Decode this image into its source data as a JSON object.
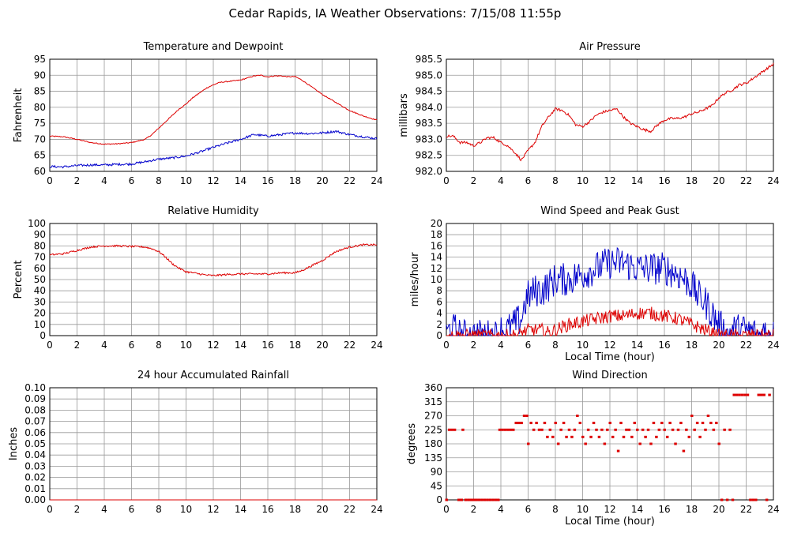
{
  "page_title": "Cedar Rapids, IA Weather Observations: 7/15/08 11:55p",
  "chart_data": [
    {
      "id": "temp",
      "type": "line",
      "title": "Temperature and Dewpoint",
      "xlabel": "",
      "ylabel": "Fahrenheit",
      "xlim": [
        0,
        24
      ],
      "ylim": [
        60,
        95
      ],
      "xticks": [
        "0",
        "2",
        "4",
        "6",
        "8",
        "10",
        "12",
        "14",
        "16",
        "18",
        "20",
        "22",
        "24"
      ],
      "yticks": [
        "60",
        "65",
        "70",
        "75",
        "80",
        "85",
        "90",
        "95"
      ],
      "grid": true,
      "series": [
        {
          "color": "#dd0000",
          "jitter": 0.15,
          "x": [
            0,
            1,
            2,
            3,
            4,
            5,
            6,
            7,
            7.5,
            8,
            8.5,
            9,
            9.5,
            10,
            10.5,
            11,
            11.5,
            12,
            12.5,
            13,
            14,
            15,
            15.5,
            16,
            16.5,
            17,
            17.5,
            18,
            18.5,
            19,
            20,
            21,
            22,
            23,
            24
          ],
          "y": [
            71,
            70.8,
            70,
            69,
            68.5,
            68.6,
            69,
            70,
            71.5,
            73.5,
            75.5,
            77.5,
            79.5,
            81,
            83,
            84.5,
            86,
            87,
            87.8,
            88,
            88.5,
            89.8,
            90,
            89.5,
            89.8,
            89.8,
            89.5,
            89.6,
            88.5,
            87,
            84,
            81.5,
            79,
            77.3,
            76
          ]
        },
        {
          "color": "#0000cc",
          "jitter": 0.35,
          "x": [
            0,
            1,
            2,
            3,
            4,
            5,
            6,
            7,
            8,
            9,
            10,
            11,
            12,
            13,
            14,
            15,
            16,
            17,
            18,
            19,
            20,
            21,
            22,
            23,
            24
          ],
          "y": [
            61.5,
            61.4,
            61.8,
            62,
            62,
            62.2,
            62.3,
            63,
            63.8,
            64.2,
            64.8,
            66,
            67.5,
            68.8,
            70,
            71.5,
            71,
            71.5,
            72,
            71.8,
            72,
            72.5,
            71.5,
            70.8,
            70.2
          ]
        }
      ]
    },
    {
      "id": "pressure",
      "type": "line",
      "title": "Air Pressure",
      "xlabel": "",
      "ylabel": "millibars",
      "xlim": [
        0,
        24
      ],
      "ylim": [
        982.0,
        985.5
      ],
      "xticks": [
        "0",
        "2",
        "4",
        "6",
        "8",
        "10",
        "12",
        "14",
        "16",
        "18",
        "20",
        "22",
        "24"
      ],
      "yticks": [
        "982.0",
        "982.5",
        "983.0",
        "983.5",
        "984.0",
        "984.5",
        "985.0",
        "985.5"
      ],
      "grid": true,
      "series": [
        {
          "color": "#dd0000",
          "jitter": 0.04,
          "x": [
            0,
            0.5,
            1,
            1.5,
            2,
            2.5,
            3,
            3.5,
            4,
            4.5,
            5,
            5.5,
            6,
            6.5,
            7,
            7.5,
            8,
            8.5,
            9,
            9.5,
            10,
            10.5,
            11,
            11.5,
            12,
            12.5,
            13,
            13.5,
            14,
            14.5,
            15,
            15.5,
            16,
            16.5,
            17,
            17.5,
            18,
            18.5,
            19,
            19.5,
            20,
            20.5,
            21,
            21.5,
            22,
            22.5,
            23,
            23.5,
            24
          ],
          "y": [
            983.1,
            983.1,
            982.9,
            982.9,
            982.8,
            982.9,
            983.05,
            983.05,
            982.9,
            982.8,
            982.6,
            982.35,
            982.65,
            982.9,
            983.4,
            983.7,
            983.95,
            983.9,
            983.75,
            983.45,
            983.4,
            983.55,
            983.75,
            983.85,
            983.9,
            983.95,
            983.7,
            983.5,
            983.4,
            983.3,
            983.25,
            983.45,
            983.6,
            983.65,
            983.65,
            983.7,
            983.8,
            983.85,
            983.95,
            984.05,
            984.3,
            984.45,
            984.55,
            984.7,
            984.75,
            984.9,
            985.05,
            985.2,
            985.35
          ]
        }
      ]
    },
    {
      "id": "humidity",
      "type": "line",
      "title": "Relative Humidity",
      "xlabel": "",
      "ylabel": "Percent",
      "xlim": [
        0,
        24
      ],
      "ylim": [
        0,
        100
      ],
      "xticks": [
        "0",
        "2",
        "4",
        "6",
        "8",
        "10",
        "12",
        "14",
        "16",
        "18",
        "20",
        "22",
        "24"
      ],
      "yticks": [
        "0",
        "10",
        "20",
        "30",
        "40",
        "50",
        "60",
        "70",
        "80",
        "90",
        "100"
      ],
      "grid": true,
      "series": [
        {
          "color": "#dd0000",
          "jitter": 0.8,
          "x": [
            0,
            1,
            2,
            3,
            4,
            5,
            6,
            7,
            7.5,
            8,
            8.5,
            9,
            9.5,
            10,
            10.5,
            11,
            11.5,
            12,
            12.5,
            13,
            14,
            15,
            16,
            17,
            18,
            18.5,
            19,
            19.5,
            20,
            20.5,
            21,
            22,
            23,
            24
          ],
          "y": [
            72,
            73,
            76,
            79,
            80,
            80,
            79.5,
            79,
            77.5,
            75,
            70,
            64,
            60,
            57,
            56,
            55,
            54,
            53.5,
            54,
            54.5,
            55,
            55,
            55,
            56,
            56,
            58,
            61,
            64,
            67,
            71,
            75,
            79,
            81,
            81
          ]
        }
      ]
    },
    {
      "id": "wind",
      "type": "line",
      "title": "Wind Speed and Peak Gust",
      "xlabel": "Local Time (hour)",
      "ylabel": "miles/hour",
      "xlim": [
        0,
        24
      ],
      "ylim": [
        0,
        20
      ],
      "xticks": [
        "0",
        "2",
        "4",
        "6",
        "8",
        "10",
        "12",
        "14",
        "16",
        "18",
        "20",
        "22",
        "24"
      ],
      "yticks": [
        "0",
        "2",
        "4",
        "6",
        "8",
        "10",
        "12",
        "14",
        "16",
        "18",
        "20"
      ],
      "grid": true,
      "series": [
        {
          "color": "#0000cc",
          "jitter": 3.0,
          "x": [
            0,
            0.2,
            0.8,
            1,
            1.5,
            1.6,
            1.7,
            3.8,
            4,
            4.5,
            5,
            5.5,
            5.8,
            6,
            6.5,
            7,
            7.5,
            8,
            9,
            10,
            11,
            12,
            13,
            14,
            15,
            16,
            17,
            18,
            18.5,
            19,
            19.5,
            20,
            20.3,
            20.5,
            21,
            22,
            23,
            23.5,
            24
          ],
          "y": [
            0,
            1,
            1,
            0,
            0,
            1,
            0,
            0,
            1,
            1,
            2,
            3,
            6,
            7,
            8,
            8,
            9,
            10,
            10,
            11,
            12,
            13,
            13,
            12,
            12,
            12,
            11,
            9,
            7,
            6,
            4,
            2,
            1,
            0,
            1,
            1,
            0,
            1,
            0
          ]
        },
        {
          "color": "#dd0000",
          "jitter": 1.2,
          "x": [
            0,
            5.3,
            5.5,
            6,
            7,
            7.5,
            8,
            9,
            10,
            11,
            12,
            13,
            14,
            15,
            16,
            17,
            18,
            19,
            19.5,
            20,
            24
          ],
          "y": [
            0,
            0,
            0.5,
            1,
            1,
            0.5,
            1,
            2,
            2.5,
            3,
            3.5,
            3.5,
            4,
            4,
            3.5,
            3,
            2,
            1,
            0.5,
            0,
            0
          ]
        }
      ]
    },
    {
      "id": "rain",
      "type": "line",
      "title": "24 hour Accumulated Rainfall",
      "xlabel": "",
      "ylabel": "Inches",
      "xlim": [
        0,
        24
      ],
      "ylim": [
        0,
        0.1
      ],
      "xticks": [
        "0",
        "2",
        "4",
        "6",
        "8",
        "10",
        "12",
        "14",
        "16",
        "18",
        "20",
        "22",
        "24"
      ],
      "yticks": [
        "0.00",
        "0.01",
        "0.02",
        "0.03",
        "0.04",
        "0.05",
        "0.06",
        "0.07",
        "0.08",
        "0.09",
        "0.10"
      ],
      "grid": true,
      "series": [
        {
          "color": "#dd0000",
          "jitter": 0,
          "x": [
            0,
            24
          ],
          "y": [
            0,
            0
          ]
        }
      ]
    },
    {
      "id": "direction",
      "type": "scatter",
      "title": "Wind Direction",
      "xlabel": "Local Time (hour)",
      "ylabel": "degrees",
      "xlim": [
        0,
        24
      ],
      "ylim": [
        0,
        360
      ],
      "xticks": [
        "0",
        "2",
        "4",
        "6",
        "8",
        "10",
        "12",
        "14",
        "16",
        "18",
        "20",
        "22",
        "24"
      ],
      "yticks": [
        "0",
        "45",
        "90",
        "135",
        "180",
        "225",
        "270",
        "315",
        "360"
      ],
      "grid": true,
      "points": [
        [
          0.0,
          0
        ],
        [
          0.2,
          225
        ],
        [
          0.4,
          225
        ],
        [
          0.6,
          225
        ],
        [
          0.9,
          0
        ],
        [
          1.1,
          0
        ],
        [
          1.2,
          225
        ],
        [
          1.4,
          0
        ],
        [
          1.6,
          0
        ],
        [
          1.8,
          0
        ],
        [
          2.0,
          0
        ],
        [
          2.2,
          0
        ],
        [
          2.4,
          0
        ],
        [
          2.6,
          0
        ],
        [
          2.8,
          0
        ],
        [
          3.0,
          0
        ],
        [
          3.2,
          0
        ],
        [
          3.4,
          0
        ],
        [
          3.6,
          0
        ],
        [
          3.8,
          0
        ],
        [
          3.9,
          225
        ],
        [
          4.1,
          225
        ],
        [
          4.3,
          225
        ],
        [
          4.5,
          225
        ],
        [
          4.7,
          225
        ],
        [
          4.9,
          225
        ],
        [
          5.1,
          247
        ],
        [
          5.3,
          247
        ],
        [
          5.5,
          247
        ],
        [
          5.7,
          270
        ],
        [
          5.9,
          270
        ],
        [
          6.0,
          180
        ],
        [
          6.2,
          247
        ],
        [
          6.4,
          225
        ],
        [
          6.6,
          247
        ],
        [
          6.8,
          225
        ],
        [
          7.0,
          225
        ],
        [
          7.2,
          247
        ],
        [
          7.4,
          202
        ],
        [
          7.6,
          225
        ],
        [
          7.8,
          202
        ],
        [
          8.0,
          247
        ],
        [
          8.2,
          180
        ],
        [
          8.4,
          225
        ],
        [
          8.6,
          247
        ],
        [
          8.8,
          202
        ],
        [
          9.0,
          225
        ],
        [
          9.2,
          202
        ],
        [
          9.4,
          225
        ],
        [
          9.6,
          270
        ],
        [
          9.8,
          247
        ],
        [
          10.0,
          202
        ],
        [
          10.2,
          180
        ],
        [
          10.4,
          225
        ],
        [
          10.6,
          202
        ],
        [
          10.8,
          247
        ],
        [
          11.0,
          225
        ],
        [
          11.2,
          202
        ],
        [
          11.4,
          225
        ],
        [
          11.6,
          180
        ],
        [
          11.8,
          225
        ],
        [
          12.0,
          247
        ],
        [
          12.2,
          202
        ],
        [
          12.4,
          225
        ],
        [
          12.6,
          157
        ],
        [
          12.8,
          247
        ],
        [
          13.0,
          202
        ],
        [
          13.2,
          225
        ],
        [
          13.4,
          225
        ],
        [
          13.6,
          202
        ],
        [
          13.8,
          247
        ],
        [
          14.0,
          225
        ],
        [
          14.2,
          180
        ],
        [
          14.4,
          225
        ],
        [
          14.6,
          202
        ],
        [
          14.8,
          225
        ],
        [
          15.0,
          180
        ],
        [
          15.2,
          247
        ],
        [
          15.4,
          202
        ],
        [
          15.6,
          225
        ],
        [
          15.8,
          247
        ],
        [
          16.0,
          225
        ],
        [
          16.2,
          202
        ],
        [
          16.4,
          247
        ],
        [
          16.6,
          225
        ],
        [
          16.8,
          180
        ],
        [
          17.0,
          225
        ],
        [
          17.2,
          247
        ],
        [
          17.4,
          157
        ],
        [
          17.6,
          225
        ],
        [
          17.8,
          202
        ],
        [
          18.0,
          270
        ],
        [
          18.2,
          225
        ],
        [
          18.4,
          247
        ],
        [
          18.6,
          202
        ],
        [
          18.8,
          247
        ],
        [
          19.0,
          225
        ],
        [
          19.2,
          270
        ],
        [
          19.4,
          247
        ],
        [
          19.6,
          225
        ],
        [
          19.8,
          247
        ],
        [
          20.0,
          180
        ],
        [
          20.2,
          0
        ],
        [
          20.4,
          225
        ],
        [
          20.6,
          0
        ],
        [
          20.8,
          225
        ],
        [
          21.0,
          0
        ],
        [
          21.1,
          337
        ],
        [
          21.3,
          337
        ],
        [
          21.5,
          337
        ],
        [
          21.7,
          337
        ],
        [
          21.9,
          337
        ],
        [
          22.1,
          337
        ],
        [
          22.3,
          0
        ],
        [
          22.5,
          0
        ],
        [
          22.7,
          0
        ],
        [
          22.9,
          337
        ],
        [
          23.1,
          337
        ],
        [
          23.3,
          337
        ],
        [
          23.5,
          0
        ],
        [
          23.7,
          337
        ]
      ],
      "point_color": "#dd0000"
    }
  ]
}
